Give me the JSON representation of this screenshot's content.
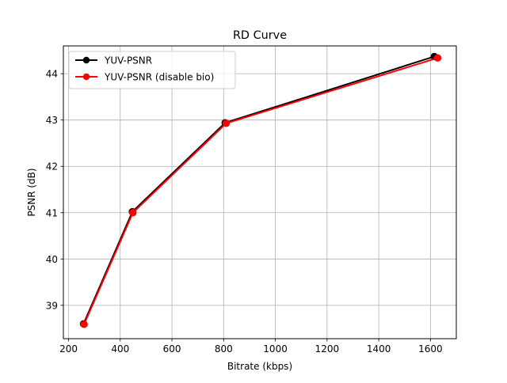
{
  "chart_data": {
    "type": "line",
    "title": "RD Curve",
    "xlabel": "Bitrate (kbps)",
    "ylabel": "PSNR (dB)",
    "xlim": [
      180,
      1700
    ],
    "ylim": [
      38.28,
      44.6
    ],
    "xticks": [
      200,
      400,
      600,
      800,
      1000,
      1200,
      1400,
      1600
    ],
    "yticks": [
      39,
      40,
      41,
      42,
      43,
      44
    ],
    "grid": true,
    "legend_position": "top-left",
    "series": [
      {
        "name": "YUV-PSNR",
        "color": "#000000",
        "marker": "circle",
        "x": [
          258,
          447,
          806,
          1615
        ],
        "y": [
          38.6,
          41.02,
          42.94,
          44.37
        ]
      },
      {
        "name": "YUV-PSNR (disable bio)",
        "color": "#ff0000",
        "marker": "circle",
        "x": [
          260,
          449,
          810,
          1628
        ],
        "y": [
          38.59,
          41.0,
          42.93,
          44.34
        ]
      }
    ]
  }
}
